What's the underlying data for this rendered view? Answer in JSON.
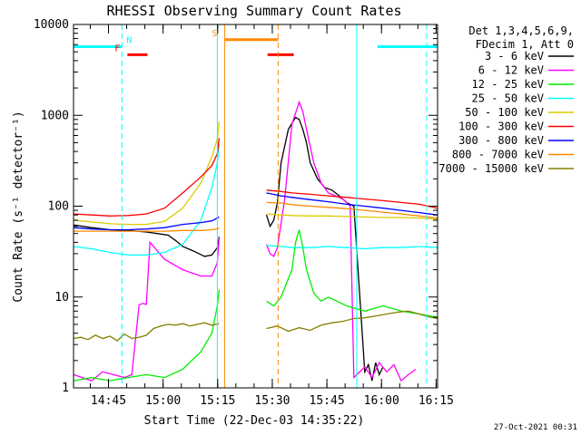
{
  "chart_data": {
    "type": "line",
    "title": "RHESSI Observing Summary Count Rates",
    "xlabel": "Start Time (22-Dec-03 14:35:22)",
    "ylabel": "Count Rate (s⁻¹ detector⁻¹)",
    "yscale": "log",
    "ylim": [
      1,
      10000
    ],
    "xlim_minutes_from_start": [
      0,
      100
    ],
    "x_ticks": [
      {
        "label": "14:45",
        "minute": 9.6
      },
      {
        "label": "15:00",
        "minute": 24.6
      },
      {
        "label": "15:15",
        "minute": 39.6
      },
      {
        "label": "15:30",
        "minute": 54.6
      },
      {
        "label": "15:45",
        "minute": 69.6
      },
      {
        "label": "16:00",
        "minute": 84.6
      },
      {
        "label": "16:15",
        "minute": 99.6
      }
    ],
    "y_ticks": [
      {
        "label": "1",
        "value": 1
      },
      {
        "label": "10",
        "value": 10
      },
      {
        "label": "100",
        "value": 100
      },
      {
        "label": "1000",
        "value": 1000
      },
      {
        "label": "10000",
        "value": 10000
      }
    ],
    "legend_header": [
      "Det 1,3,4,5,6,9,",
      "FDecim 1, Att 0"
    ],
    "series": [
      {
        "name": "3 - 6 keV",
        "color": "#000000",
        "x": [
          0,
          5,
          10,
          15,
          20,
          23,
          26,
          28,
          30,
          33,
          36,
          38,
          39.5,
          40,
          53,
          54,
          55,
          56,
          57,
          59,
          61,
          62,
          63,
          64,
          65,
          67,
          69,
          71,
          73,
          75,
          77,
          80,
          81,
          82,
          83,
          84,
          85
        ],
        "y": [
          62,
          58,
          55,
          54,
          52,
          50,
          48,
          42,
          36,
          32,
          28,
          29,
          35,
          46,
          80,
          60,
          70,
          110,
          300,
          700,
          950,
          900,
          700,
          500,
          300,
          200,
          160,
          150,
          130,
          110,
          100,
          1.5,
          1.8,
          1.2,
          1.9,
          1.4,
          1.7
        ]
      },
      {
        "name": "6 - 12 keV",
        "color": "#ff00ff",
        "x": [
          0,
          5,
          8,
          14,
          16,
          18,
          19,
          20,
          21,
          25,
          30,
          35,
          38,
          39.5,
          40,
          53,
          54,
          55,
          56,
          58,
          60,
          62,
          63,
          64,
          66,
          68,
          70,
          72,
          74,
          75,
          76,
          77,
          80,
          82,
          84,
          86,
          88,
          90,
          92,
          94
        ],
        "y": [
          1.4,
          1.2,
          1.5,
          1.3,
          1.4,
          8.2,
          8.5,
          8.3,
          40,
          26,
          20,
          17,
          17,
          24,
          45,
          38,
          30,
          28,
          35,
          120,
          800,
          1400,
          1100,
          700,
          300,
          180,
          140,
          130,
          120,
          110,
          100,
          1.3,
          1.7,
          1.3,
          1.9,
          1.5,
          1.8,
          1.2,
          1.4,
          1.6
        ]
      },
      {
        "name": "12 - 25 keV",
        "color": "#00ee00",
        "x": [
          0,
          5,
          10,
          15,
          20,
          25,
          30,
          35,
          38,
          39.5,
          40,
          53,
          55,
          57,
          60,
          61,
          62,
          63,
          64,
          66,
          68,
          70,
          75,
          80,
          85,
          90,
          95,
          100
        ],
        "y": [
          1.2,
          1.3,
          1.2,
          1.3,
          1.4,
          1.3,
          1.6,
          2.5,
          4,
          8,
          12,
          9,
          8,
          10,
          20,
          40,
          55,
          35,
          20,
          11,
          9,
          10,
          8,
          7,
          8,
          7,
          6.5,
          6
        ]
      },
      {
        "name": "25 - 50 keV",
        "color": "#00ffff",
        "x": [
          0,
          5,
          10,
          15,
          20,
          25,
          30,
          35,
          38,
          39.5,
          40,
          53,
          57,
          60,
          65,
          70,
          75,
          80,
          85,
          90,
          95,
          100
        ],
        "y": [
          36,
          34,
          31,
          29,
          29,
          31,
          38,
          70,
          160,
          300,
          480,
          37,
          36,
          35,
          35,
          36,
          35,
          34,
          35,
          35,
          36,
          35
        ]
      },
      {
        "name": "50 - 100 keV",
        "color": "#ddcc00",
        "x": [
          0,
          5,
          10,
          15,
          20,
          25,
          30,
          35,
          38,
          39.5,
          40,
          53,
          57,
          60,
          65,
          70,
          75,
          80,
          85,
          90,
          95,
          100
        ],
        "y": [
          70,
          67,
          64,
          63,
          63,
          68,
          95,
          180,
          350,
          550,
          850,
          82,
          80,
          79,
          78,
          78,
          77,
          76,
          75,
          75,
          74,
          72
        ]
      },
      {
        "name": "100 - 300 keV",
        "color": "#ff0000",
        "x": [
          0,
          5,
          10,
          15,
          20,
          25,
          30,
          35,
          38,
          39.5,
          40,
          53,
          57,
          60,
          65,
          70,
          75,
          80,
          85,
          90,
          95,
          100
        ],
        "y": [
          82,
          80,
          78,
          79,
          82,
          95,
          140,
          210,
          280,
          380,
          560,
          150,
          145,
          140,
          135,
          130,
          125,
          120,
          115,
          110,
          105,
          95
        ]
      },
      {
        "name": "300 - 800 keV",
        "color": "#0000ff",
        "x": [
          0,
          5,
          10,
          15,
          20,
          25,
          30,
          35,
          38,
          39.5,
          40,
          53,
          57,
          60,
          65,
          70,
          75,
          80,
          85,
          90,
          95,
          100
        ],
        "y": [
          58,
          56,
          55,
          55,
          56,
          58,
          63,
          66,
          69,
          74,
          76,
          140,
          130,
          125,
          118,
          112,
          105,
          100,
          95,
          90,
          85,
          80
        ]
      },
      {
        "name": "800 - 7000 keV",
        "color": "#ff8800",
        "x": [
          0,
          5,
          10,
          15,
          20,
          25,
          30,
          35,
          38,
          39.5,
          40,
          53,
          57,
          60,
          65,
          70,
          75,
          80,
          85,
          90,
          95,
          100
        ],
        "y": [
          53,
          53,
          53,
          53,
          53,
          53,
          54,
          54,
          55,
          56,
          58,
          110,
          108,
          104,
          100,
          97,
          94,
          90,
          86,
          82,
          78,
          74
        ]
      },
      {
        "name": "7000 - 15000 keV",
        "color": "#808000",
        "x": [
          0,
          2,
          4,
          6,
          8,
          10,
          12,
          14,
          16,
          18,
          20,
          22,
          24,
          26,
          28,
          30,
          32,
          34,
          36,
          38,
          40,
          53,
          56,
          59,
          62,
          65,
          68,
          71,
          74,
          77,
          80,
          83,
          86,
          89,
          92,
          95,
          98,
          100
        ],
        "y": [
          3.5,
          3.6,
          3.4,
          3.8,
          3.5,
          3.7,
          3.3,
          3.9,
          3.5,
          3.6,
          3.8,
          4.5,
          4.8,
          5,
          4.9,
          5.1,
          4.8,
          5,
          5.2,
          4.9,
          5.1,
          4.5,
          4.8,
          4.2,
          4.6,
          4.3,
          4.9,
          5.2,
          5.4,
          5.8,
          5.9,
          6.2,
          6.5,
          6.8,
          7,
          6.5,
          6,
          5.8
        ]
      }
    ],
    "markers": [
      {
        "type": "segment",
        "label": "N",
        "color": "#00ffff",
        "x": [
          0,
          13.3
        ],
        "y": 5700
      },
      {
        "type": "segment",
        "label": "",
        "color": "#00ffff",
        "x": [
          83.5,
          100
        ],
        "y": 5700
      },
      {
        "type": "segment",
        "label": "F",
        "color": "#ff0000",
        "x": [
          14.8,
          20.3
        ],
        "y": 4650
      },
      {
        "type": "segment",
        "label": "",
        "color": "#ff0000",
        "x": [
          53.3,
          60.5
        ],
        "y": 4650
      },
      {
        "type": "segment",
        "label": "S",
        "color": "#ff8800",
        "x": [
          41.5,
          56.2
        ],
        "y": 6800
      },
      {
        "type": "vline",
        "style": "dashed",
        "color": "#00ffff",
        "x": 13.3
      },
      {
        "type": "vline",
        "style": "solid",
        "color": "#00ffff",
        "x": 0
      },
      {
        "type": "vline",
        "style": "solid",
        "color": "#00ffff",
        "x": 39.5
      },
      {
        "type": "vline",
        "style": "solid",
        "color": "#00ffff",
        "x": 77.8
      },
      {
        "type": "vline",
        "style": "dashed",
        "color": "#00ffff",
        "x": 97
      },
      {
        "type": "vline",
        "style": "solid",
        "color": "#ff8800",
        "x": 41.5
      },
      {
        "type": "vline",
        "style": "dashed",
        "color": "#ff8800",
        "x": 56.2
      }
    ]
  },
  "footer": {
    "timestamp": "27-Oct-2021 00:31"
  }
}
